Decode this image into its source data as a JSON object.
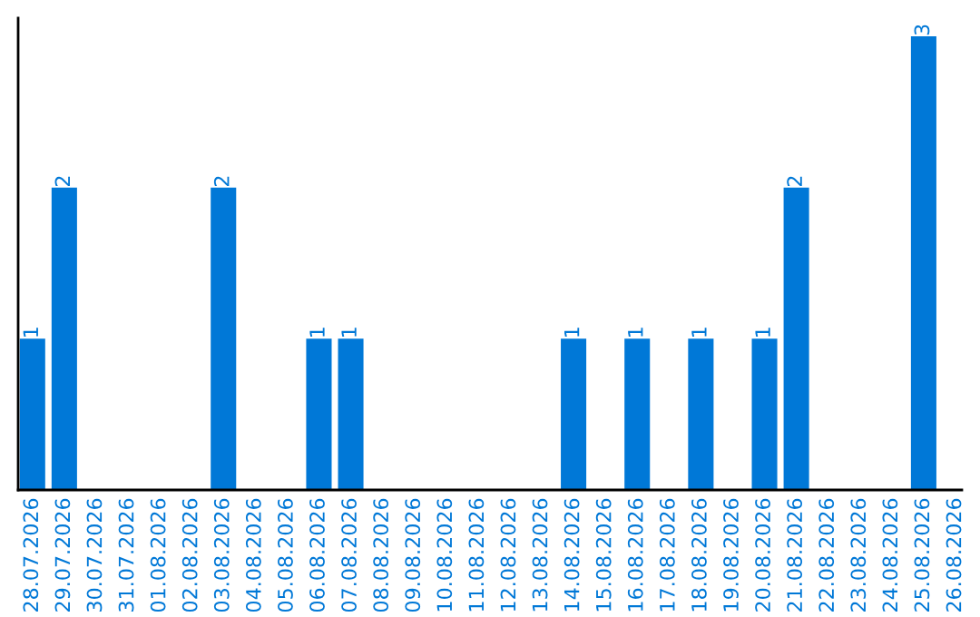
{
  "chart_data": {
    "type": "bar",
    "categories": [
      "28.07.2026",
      "29.07.2026",
      "30.07.2026",
      "31.07.2026",
      "01.08.2026",
      "02.08.2026",
      "03.08.2026",
      "04.08.2026",
      "05.08.2026",
      "06.08.2026",
      "07.08.2026",
      "08.08.2026",
      "09.08.2026",
      "10.08.2026",
      "11.08.2026",
      "12.08.2026",
      "13.08.2026",
      "14.08.2026",
      "15.08.2026",
      "16.08.2026",
      "17.08.2026",
      "18.08.2026",
      "19.08.2026",
      "20.08.2026",
      "21.08.2026",
      "22.08.2026",
      "23.08.2026",
      "24.08.2026",
      "25.08.2026",
      "26.08.2026"
    ],
    "values": [
      1,
      2,
      0,
      0,
      0,
      0,
      2,
      0,
      0,
      1,
      1,
      0,
      0,
      0,
      0,
      0,
      0,
      1,
      0,
      1,
      0,
      1,
      0,
      1,
      2,
      0,
      0,
      0,
      3,
      0
    ],
    "value_labels": [
      "1",
      "2",
      null,
      null,
      null,
      null,
      "2",
      null,
      null,
      "1",
      "1",
      null,
      null,
      null,
      null,
      null,
      null,
      "1",
      null,
      "1",
      null,
      "1",
      null,
      "1",
      "2",
      null,
      null,
      null,
      "3",
      null
    ],
    "color": "#0078d7",
    "ylim": [
      0,
      3.12
    ],
    "tick_labels": "x",
    "grid": false,
    "legend": false
  }
}
